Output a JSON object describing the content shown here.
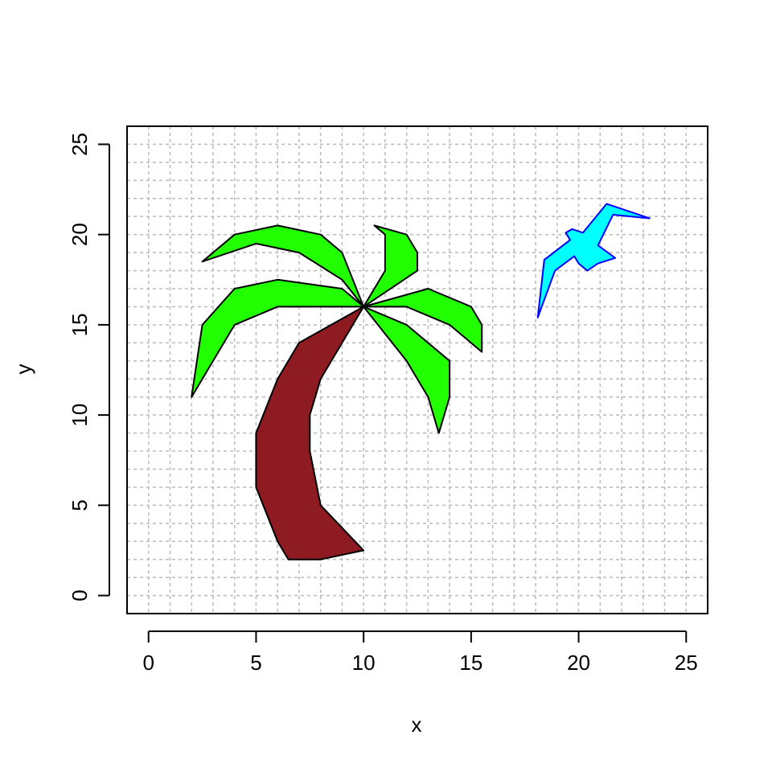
{
  "chart_data": {
    "type": "scatter",
    "title": "",
    "xlabel": "x",
    "ylabel": "y",
    "xlim": [
      -1,
      26
    ],
    "ylim": [
      -1,
      26
    ],
    "x_ticks": [
      0,
      5,
      10,
      15,
      20,
      25
    ],
    "y_ticks": [
      0,
      5,
      10,
      15,
      20,
      25
    ],
    "grid": true,
    "grid_step": 1,
    "legend": "none",
    "colors": {
      "grid": "#bebebe",
      "trunk": "#8e1b22",
      "leaves": "#22ff00",
      "bird_fill": "#00ffff",
      "bird_outline": "#0000ff",
      "outline": "#000000"
    },
    "shapes": [
      {
        "kind": "trunk",
        "fill": "#8e1b22",
        "stroke": "#000000",
        "points": [
          [
            10,
            16
          ],
          [
            7,
            14
          ],
          [
            6,
            12
          ],
          [
            5,
            9
          ],
          [
            5,
            6
          ],
          [
            6,
            3
          ],
          [
            6.5,
            2
          ],
          [
            8,
            2
          ],
          [
            10,
            2.5
          ],
          [
            8,
            5
          ],
          [
            7.5,
            8
          ],
          [
            7.5,
            10
          ],
          [
            8,
            12
          ]
        ]
      },
      {
        "kind": "leaf",
        "fill": "#22ff00",
        "stroke": "#000000",
        "points": [
          [
            10,
            16
          ],
          [
            9,
            19
          ],
          [
            8,
            20
          ],
          [
            6,
            20.5
          ],
          [
            4,
            20
          ],
          [
            2.5,
            18.5
          ],
          [
            5,
            19.5
          ],
          [
            7,
            19
          ],
          [
            9,
            17.5
          ]
        ]
      },
      {
        "kind": "leaf",
        "fill": "#22ff00",
        "stroke": "#000000",
        "points": [
          [
            10,
            16
          ],
          [
            9,
            17
          ],
          [
            6,
            17.5
          ],
          [
            4,
            17
          ],
          [
            2.5,
            15
          ],
          [
            2,
            11
          ],
          [
            4,
            15
          ],
          [
            6,
            16
          ]
        ]
      },
      {
        "kind": "leaf",
        "fill": "#22ff00",
        "stroke": "#000000",
        "points": [
          [
            10,
            16
          ],
          [
            11,
            18
          ],
          [
            11,
            20
          ],
          [
            10.5,
            20.5
          ],
          [
            12,
            20
          ],
          [
            12.5,
            19
          ],
          [
            12.5,
            18
          ]
        ]
      },
      {
        "kind": "leaf",
        "fill": "#22ff00",
        "stroke": "#000000",
        "points": [
          [
            10,
            16
          ],
          [
            13,
            17
          ],
          [
            15,
            16
          ],
          [
            15.5,
            15
          ],
          [
            15.5,
            13.5
          ],
          [
            14,
            15
          ],
          [
            12,
            16
          ]
        ]
      },
      {
        "kind": "leaf",
        "fill": "#22ff00",
        "stroke": "#000000",
        "points": [
          [
            10,
            16
          ],
          [
            12,
            15
          ],
          [
            14,
            13
          ],
          [
            14,
            11
          ],
          [
            13.5,
            9
          ],
          [
            13,
            11
          ],
          [
            12,
            13
          ]
        ]
      },
      {
        "kind": "bird",
        "fill": "#00ffff",
        "stroke": "#0000ff",
        "points": [
          [
            18.1,
            15.4
          ],
          [
            18.4,
            18.6
          ],
          [
            19.6,
            19.7
          ],
          [
            19.4,
            20.1
          ],
          [
            19.7,
            20.3
          ],
          [
            20.2,
            20.1
          ],
          [
            21.3,
            21.7
          ],
          [
            23.3,
            20.9
          ],
          [
            21.6,
            21.1
          ],
          [
            20.9,
            19.4
          ],
          [
            21.7,
            18.7
          ],
          [
            20.9,
            18.4
          ],
          [
            20.4,
            18.0
          ],
          [
            20.0,
            18.4
          ],
          [
            19.8,
            18.8
          ],
          [
            18.9,
            18.0
          ]
        ]
      }
    ]
  }
}
